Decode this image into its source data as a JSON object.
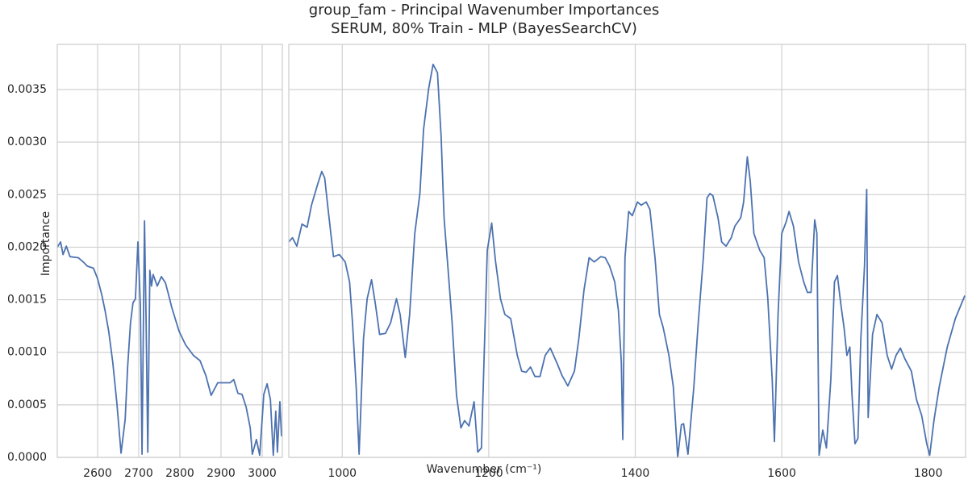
{
  "chart_data": {
    "type": "line",
    "title": "group_fam - Principal Wavenumber Importances",
    "subtitle": "SERUM, 80% Train - MLP (BayesSearchCV)",
    "xlabel": "Wavenumber (cm⁻¹)",
    "ylabel": "Importance",
    "color": "#4c72b0",
    "grid": true,
    "ylim": [
      0,
      0.00393
    ],
    "yticks": [
      {
        "value": 0,
        "label": "0.0000"
      },
      {
        "value": 0.0005,
        "label": "0.0005"
      },
      {
        "value": 0.001,
        "label": "0.0010"
      },
      {
        "value": 0.0015,
        "label": "0.0015"
      },
      {
        "value": 0.002,
        "label": "0.0020"
      },
      {
        "value": 0.0025,
        "label": "0.0025"
      },
      {
        "value": 0.003,
        "label": "0.0030"
      },
      {
        "value": 0.0035,
        "label": "0.0035"
      }
    ],
    "panels": [
      {
        "xlim": [
          2502,
          3049
        ],
        "xticks": [
          2600,
          2700,
          2800,
          2900,
          3000
        ],
        "x": [
          2502,
          2510,
          2516,
          2524,
          2533,
          2553,
          2565,
          2575,
          2590,
          2600,
          2610,
          2618,
          2627,
          2637,
          2647,
          2657,
          2667,
          2673,
          2680,
          2686,
          2692,
          2698,
          2704,
          2708,
          2714,
          2718,
          2722,
          2727,
          2731,
          2735,
          2745,
          2755,
          2765,
          2775,
          2780,
          2798,
          2814,
          2833,
          2849,
          2863,
          2876,
          2892,
          2922,
          2931,
          2941,
          2951,
          2961,
          2971,
          2976,
          2986,
          2994,
          3004,
          3012,
          3020,
          3027,
          3033,
          3037,
          3043,
          3047
        ],
        "values": [
          0.002,
          0.00205,
          0.00193,
          0.00201,
          0.00191,
          0.0019,
          0.00186,
          0.00182,
          0.0018,
          0.0017,
          0.00155,
          0.0014,
          0.0012,
          0.0009,
          0.00051,
          4e-05,
          0.00036,
          0.00086,
          0.00128,
          0.00147,
          0.00151,
          0.00205,
          0.00144,
          3e-05,
          0.00225,
          0.00128,
          5e-05,
          0.00178,
          0.00163,
          0.00174,
          0.00163,
          0.00172,
          0.00166,
          0.00151,
          0.00143,
          0.0012,
          0.00107,
          0.00097,
          0.00092,
          0.00078,
          0.00059,
          0.00071,
          0.00071,
          0.00074,
          0.00061,
          0.0006,
          0.00048,
          0.00028,
          3e-05,
          0.00017,
          2e-05,
          0.0006,
          0.0007,
          0.00055,
          2e-05,
          0.00044,
          5e-05,
          0.00053,
          0.0002
        ]
      },
      {
        "xlim": [
          927,
          1851
        ],
        "xticks": [
          1000,
          1200,
          1400,
          1600,
          1800
        ],
        "x": [
          927,
          932,
          938,
          945,
          952,
          958,
          966,
          972,
          976,
          981,
          988,
          996,
          1004,
          1010,
          1014,
          1019,
          1023,
          1029,
          1034,
          1040,
          1045,
          1051,
          1059,
          1066,
          1074,
          1079,
          1086,
          1092,
          1099,
          1106,
          1111,
          1118,
          1124,
          1130,
          1135,
          1139,
          1145,
          1150,
          1156,
          1162,
          1167,
          1173,
          1180,
          1185,
          1190,
          1198,
          1204,
          1209,
          1216,
          1222,
          1230,
          1239,
          1245,
          1251,
          1257,
          1263,
          1270,
          1277,
          1284,
          1293,
          1300,
          1308,
          1317,
          1323,
          1330,
          1337,
          1344,
          1353,
          1359,
          1365,
          1372,
          1377,
          1381,
          1383,
          1386,
          1391,
          1396,
          1403,
          1408,
          1415,
          1420,
          1427,
          1433,
          1438,
          1446,
          1452,
          1458,
          1463,
          1466,
          1472,
          1480,
          1486,
          1493,
          1498,
          1502,
          1506,
          1513,
          1518,
          1524,
          1531,
          1536,
          1544,
          1548,
          1553,
          1557,
          1562,
          1566,
          1570,
          1576,
          1581,
          1587,
          1590,
          1595,
          1600,
          1606,
          1610,
          1616,
          1623,
          1630,
          1635,
          1640,
          1645,
          1648,
          1651,
          1656,
          1661,
          1667,
          1672,
          1676,
          1681,
          1685,
          1689,
          1693,
          1696,
          1700,
          1704,
          1708,
          1713,
          1716,
          1718,
          1724,
          1730,
          1737,
          1744,
          1750,
          1756,
          1762,
          1768,
          1777,
          1784,
          1791,
          1798,
          1802,
          1808,
          1815,
          1826,
          1837,
          1850
        ],
        "values": [
          0.00205,
          0.00209,
          0.00201,
          0.00222,
          0.00219,
          0.0024,
          0.00259,
          0.00272,
          0.00266,
          0.00234,
          0.00191,
          0.00193,
          0.00186,
          0.00167,
          0.00128,
          0.00067,
          3e-05,
          0.00113,
          0.00151,
          0.00169,
          0.00147,
          0.00117,
          0.00118,
          0.00128,
          0.00151,
          0.00136,
          0.00095,
          0.00136,
          0.00213,
          0.00251,
          0.00312,
          0.00351,
          0.00374,
          0.00366,
          0.00305,
          0.00228,
          0.00174,
          0.00128,
          0.00059,
          0.00028,
          0.00035,
          0.0003,
          0.00053,
          5e-05,
          9e-05,
          0.00197,
          0.00223,
          0.00188,
          0.00151,
          0.00136,
          0.00132,
          0.00097,
          0.00082,
          0.00081,
          0.00086,
          0.00077,
          0.00077,
          0.00097,
          0.00104,
          0.0009,
          0.00078,
          0.00068,
          0.00082,
          0.00113,
          0.00159,
          0.0019,
          0.00186,
          0.00191,
          0.0019,
          0.00182,
          0.00167,
          0.0014,
          0.0009,
          0.00017,
          0.0019,
          0.00234,
          0.0023,
          0.00243,
          0.0024,
          0.00243,
          0.00236,
          0.0019,
          0.00136,
          0.00124,
          0.00097,
          0.00067,
          0,
          0.00031,
          0.00032,
          3e-05,
          0.00067,
          0.00128,
          0.0019,
          0.00247,
          0.00251,
          0.00249,
          0.00228,
          0.00205,
          0.00201,
          0.00209,
          0.0022,
          0.00228,
          0.00243,
          0.00286,
          0.00263,
          0.00213,
          0.00205,
          0.00197,
          0.0019,
          0.00151,
          0.00074,
          0.00015,
          0.00136,
          0.00213,
          0.00224,
          0.00234,
          0.0022,
          0.00186,
          0.00167,
          0.00157,
          0.00157,
          0.00226,
          0.00213,
          2e-05,
          0.00026,
          9e-05,
          0.00074,
          0.00167,
          0.00173,
          0.00144,
          0.00124,
          0.00097,
          0.00105,
          0.00059,
          0.00013,
          0.00018,
          0.00113,
          0.00182,
          0.00255,
          0.00038,
          0.00117,
          0.00136,
          0.00128,
          0.00097,
          0.00084,
          0.00097,
          0.00104,
          0.00094,
          0.00082,
          0.00055,
          0.0004,
          0.00013,
          2e-05,
          0.00036,
          0.00067,
          0.00105,
          0.00132,
          0.00154
        ]
      }
    ]
  }
}
